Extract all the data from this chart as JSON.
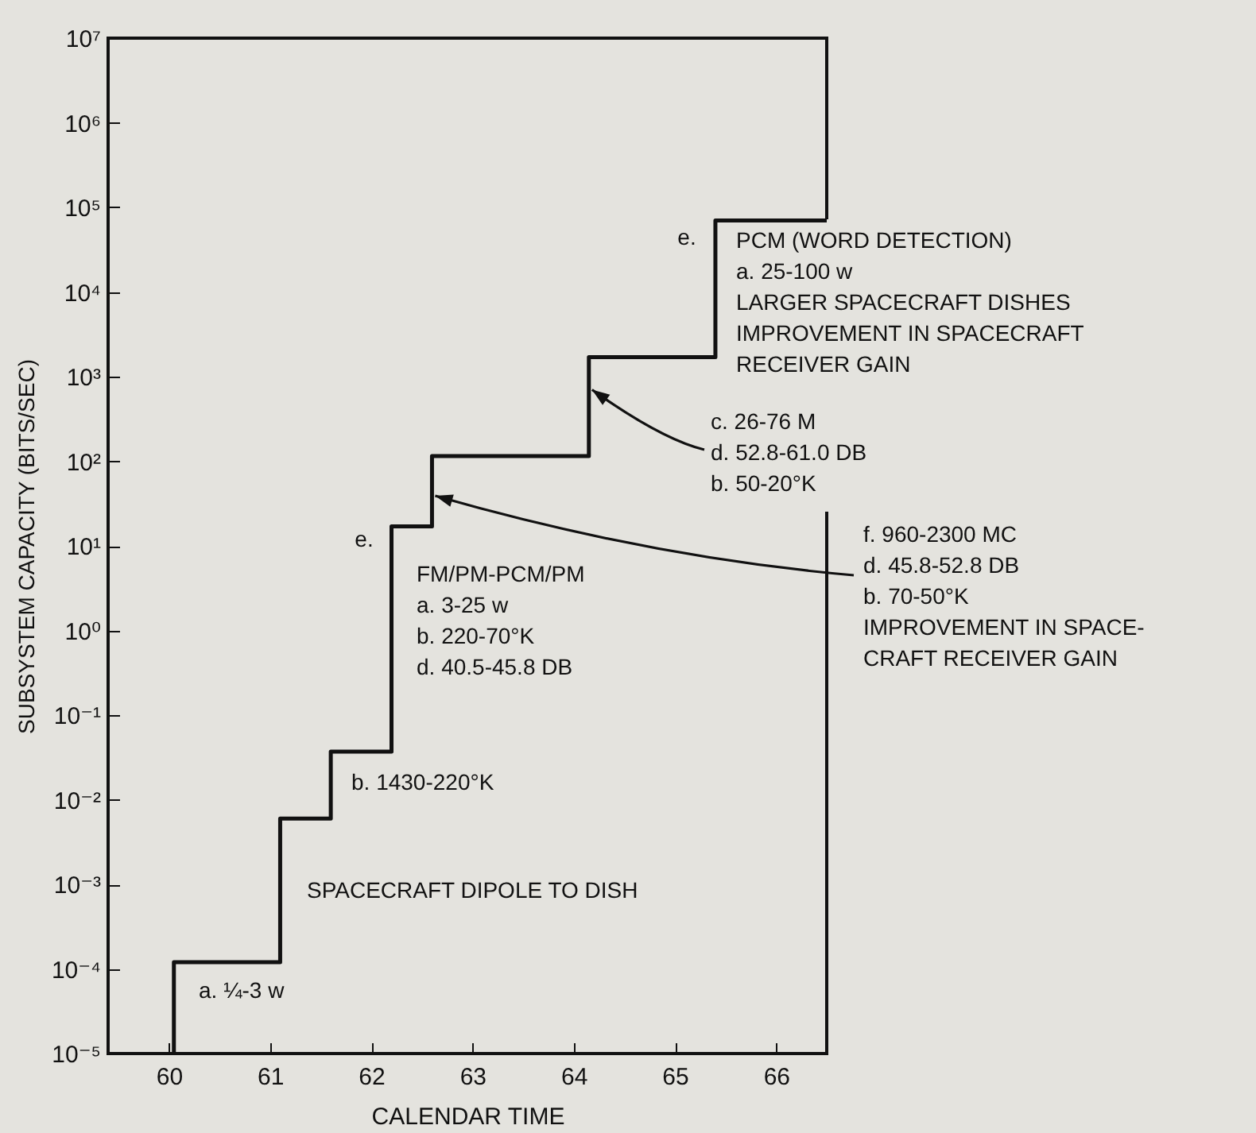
{
  "chart_data": {
    "type": "step",
    "xlabel": "CALENDAR TIME",
    "ylabel": "SUBSYSTEM CAPACITY (BITS/SEC)",
    "x": [
      60.05,
      60.05,
      61.1,
      61.6,
      62.2,
      62.6,
      64.15,
      65.4,
      66.5
    ],
    "values": [
      1e-05,
      0.00012,
      0.006,
      0.037,
      17,
      115,
      1700,
      70000,
      70000
    ],
    "color": "#111111",
    "xlim": [
      59.4,
      66.5
    ],
    "xticks": [
      60,
      61,
      62,
      63,
      64,
      65,
      66
    ],
    "ylim": [
      1e-05,
      10000000
    ],
    "log": "y",
    "yticks": [
      {
        "value": 1e-05,
        "label": "10⁻⁵"
      },
      {
        "value": 0.0001,
        "label": "10⁻⁴"
      },
      {
        "value": 0.001,
        "label": "10⁻³"
      },
      {
        "value": 0.01,
        "label": "10⁻²"
      },
      {
        "value": 0.1,
        "label": "10⁻¹"
      },
      {
        "value": 1,
        "label": "10⁰"
      },
      {
        "value": 10,
        "label": "10¹"
      },
      {
        "value": 100,
        "label": "10²"
      },
      {
        "value": 1000,
        "label": "10³"
      },
      {
        "value": 10000,
        "label": "10⁴"
      },
      {
        "value": 100000,
        "label": "10⁵"
      },
      {
        "value": 1000000,
        "label": "10⁶"
      },
      {
        "value": 10000000,
        "label": "10⁷"
      }
    ],
    "grid": false,
    "annotations": [
      "e.",
      "PCM (WORD DETECTION)\na. 25-100 w\nLARGER SPACECRAFT DISHES\nIMPROVEMENT IN SPACECRAFT\nRECEIVER GAIN",
      {
        "text": "c. 26-76 M\nd. 52.8-61.0 DB\nb. 50-20°K",
        "x": 64.15,
        "y": 700
      },
      "e.",
      "FM/PM-PCM/PM\na. 3-25 w\nb. 220-70°K\nd. 40.5-45.8 DB",
      {
        "text": "f. 960-2300 MC\nd. 45.8-52.8 DB\nb. 70-50°K\nIMPROVEMENT IN SPACE-\nCRAFT RECEIVER GAIN",
        "x": 62.6,
        "y": 39
      },
      "b. 1430-220°K",
      "SPACECRAFT DIPOLE TO DISH",
      "a. ¼-3 w"
    ]
  }
}
